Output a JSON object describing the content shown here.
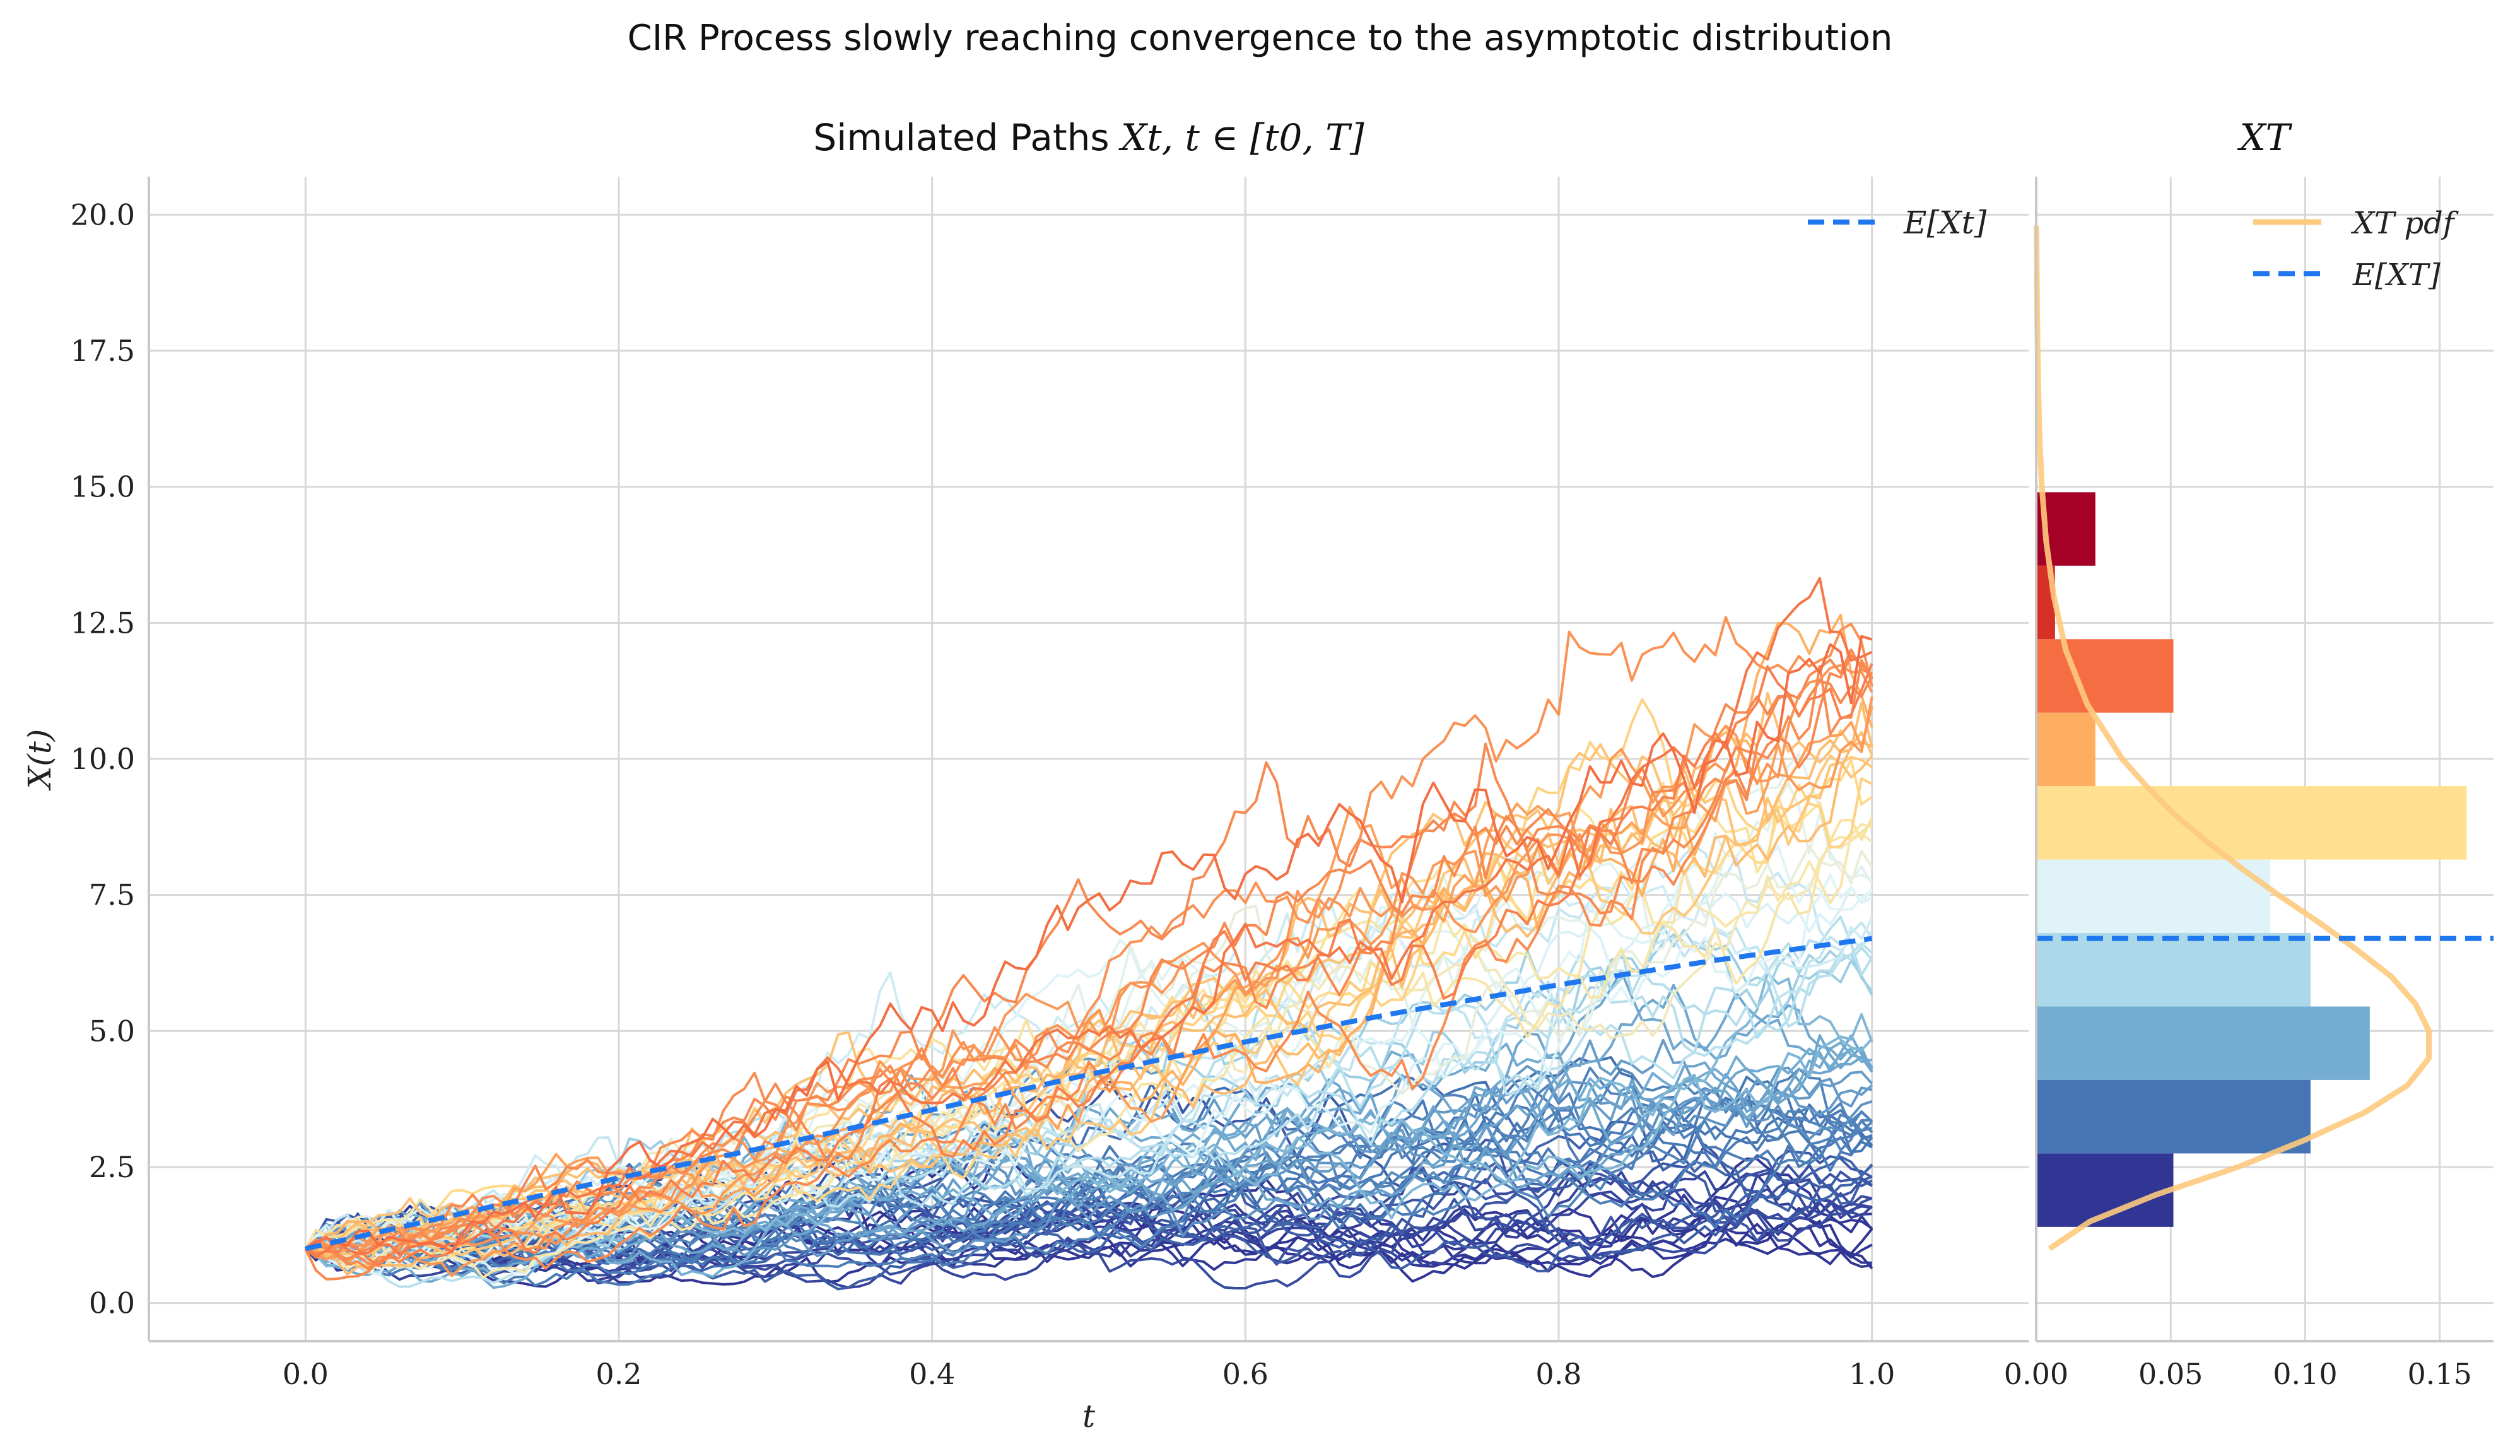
{
  "figure": {
    "suptitle": "CIR Process slowly reaching convergence to the asymptotic distribution"
  },
  "chart_data": [
    {
      "type": "line",
      "title_text": "Simulated Paths ",
      "title_math": "Xt, t ∈ [t0, T]",
      "xlabel": "t",
      "ylabel": "X(t)",
      "xlim": [
        -0.1,
        1.1
      ],
      "ylim": [
        -0.7,
        20.7
      ],
      "x_ticks": [
        "0.0",
        "0.2",
        "0.4",
        "0.6",
        "0.8",
        "1.0"
      ],
      "y_ticks": [
        "0.0",
        "2.5",
        "5.0",
        "7.5",
        "10.0",
        "12.5",
        "15.0",
        "17.5",
        "20.0"
      ],
      "grid": true,
      "legend": {
        "position": "top-right",
        "entries": [
          "E[Xt]"
        ]
      },
      "mean_line": {
        "name": "E[Xt]",
        "color": "#1f77f0",
        "x": [
          0.0,
          0.1,
          0.2,
          0.3,
          0.4,
          0.5,
          0.6,
          0.7,
          0.8,
          0.9,
          1.0
        ],
        "values": [
          1.0,
          1.65,
          2.3,
          2.9,
          3.55,
          4.2,
          4.8,
          5.35,
          5.85,
          6.3,
          6.7
        ]
      },
      "paths": {
        "count": 80,
        "start_value": 1.0,
        "t_end": 1.0,
        "colormap": "RdYlBu_r",
        "end_values_range": [
          1.4,
          15.3
        ]
      }
    },
    {
      "type": "bar",
      "title_math": "XT",
      "orientation": "horizontal",
      "xlim": [
        0,
        0.17
      ],
      "x_ticks": [
        "0.00",
        "0.05",
        "0.10",
        "0.15"
      ],
      "grid": true,
      "legend": {
        "position": "top-right",
        "entries": [
          "XT pdf",
          "E[XT]"
        ]
      },
      "bins": [
        {
          "y0": 1.4,
          "y1": 2.75,
          "density": 0.051,
          "color": "#313695"
        },
        {
          "y0": 2.75,
          "y1": 4.1,
          "density": 0.102,
          "color": "#4575b4"
        },
        {
          "y0": 4.1,
          "y1": 5.45,
          "density": 0.124,
          "color": "#74add1"
        },
        {
          "y0": 5.45,
          "y1": 6.8,
          "density": 0.102,
          "color": "#abd9e9"
        },
        {
          "y0": 6.8,
          "y1": 8.15,
          "density": 0.087,
          "color": "#e0f3f8"
        },
        {
          "y0": 8.15,
          "y1": 9.5,
          "density": 0.16,
          "color": "#fee090"
        },
        {
          "y0": 9.5,
          "y1": 10.85,
          "density": 0.022,
          "color": "#fdae61"
        },
        {
          "y0": 10.85,
          "y1": 12.2,
          "density": 0.051,
          "color": "#f46d43"
        },
        {
          "y0": 12.2,
          "y1": 13.55,
          "density": 0.007,
          "color": "#d73027"
        },
        {
          "y0": 13.55,
          "y1": 14.9,
          "density": 0.022,
          "color": "#a50026"
        }
      ],
      "pdf": {
        "name": "XT pdf",
        "color": "#fdca7e",
        "y": [
          1.0,
          1.5,
          2.0,
          2.5,
          3.0,
          3.5,
          4.0,
          4.5,
          5.0,
          5.5,
          6.0,
          6.5,
          7.0,
          7.5,
          8.0,
          8.5,
          9.0,
          9.5,
          10.0,
          11.0,
          12.0,
          13.0,
          14.0,
          15.0,
          16.0,
          17.0,
          18.0,
          19.0,
          19.8
        ],
        "density": [
          0.005,
          0.02,
          0.045,
          0.075,
          0.1,
          0.122,
          0.138,
          0.146,
          0.146,
          0.141,
          0.132,
          0.119,
          0.105,
          0.09,
          0.076,
          0.063,
          0.051,
          0.041,
          0.032,
          0.019,
          0.011,
          0.0065,
          0.0037,
          0.0021,
          0.0012,
          0.0007,
          0.0004,
          0.0002,
          0.0001
        ]
      },
      "mean": {
        "name": "E[XT]",
        "value": 6.7,
        "color": "#1f77f0"
      }
    }
  ]
}
